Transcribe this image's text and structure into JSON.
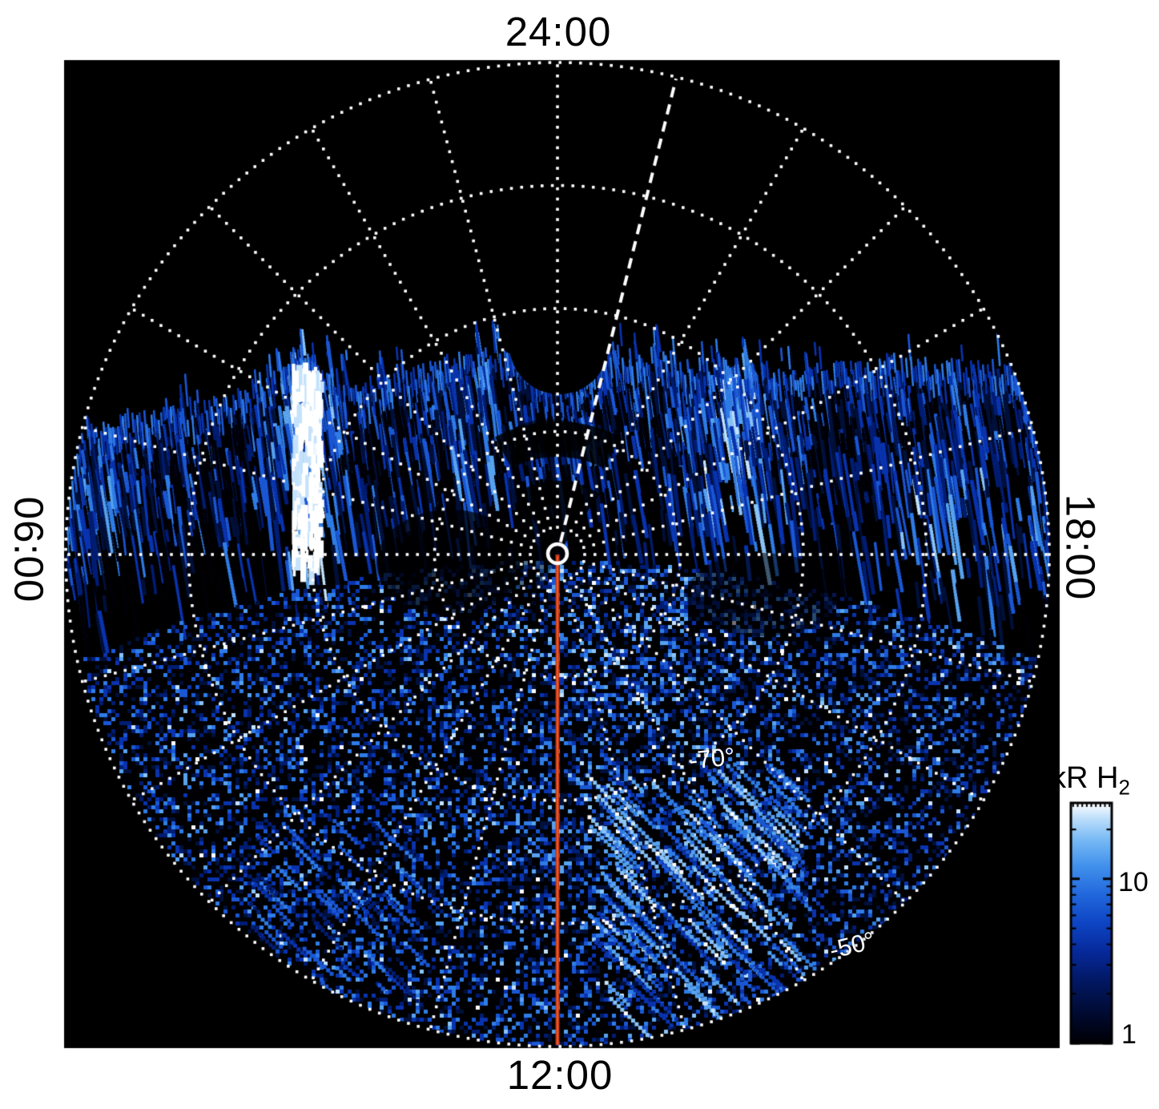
{
  "plot_labels": {
    "top": "24:00",
    "bottom": "12:00",
    "left": "06:00",
    "right": "18:00"
  },
  "latitude_labels": {
    "minus70": "-70°",
    "minus50": "-50°"
  },
  "colorbar_labels": {
    "title_main": "kR H",
    "title_sub": "2",
    "tick_10": "10",
    "tick_1": "1"
  },
  "colors": {
    "background": "#ffffff",
    "plot_background": "#000000",
    "grid": "#ffffff",
    "red_meridian": "#c63310",
    "red_meridian_core": "#e8632a",
    "text": "#000000",
    "lat_label_text": "#ffffff",
    "palette": [
      "#000006",
      "#00103a",
      "#001d74",
      "#0933ae",
      "#1a57d4",
      "#2f7ce6",
      "#57a2ef",
      "#8ac3f6",
      "#c4e2fc",
      "#ffffff"
    ]
  },
  "chart_data": {
    "type": "heatmap",
    "projection": "polar-south-pole",
    "title": "",
    "angular_axis": {
      "label_type": "local time",
      "labels": [
        {
          "text": "24:00",
          "position": "top"
        },
        {
          "text": "12:00",
          "position": "bottom"
        },
        {
          "text": "06:00",
          "position": "left"
        },
        {
          "text": "18:00",
          "position": "right"
        }
      ],
      "spoke_interval_deg": 15,
      "grid_style": "dotted-white"
    },
    "radial_axis": {
      "label_type": "latitude",
      "circles_deg": [
        -80,
        -70,
        -60,
        -50
      ],
      "labeled_circles": [
        {
          "text": "-70°",
          "deg": -70
        },
        {
          "text": "-50°",
          "deg": -50
        }
      ],
      "pole_deg": -90,
      "outer_edge_deg": -50
    },
    "colorbar": {
      "title": "kR H2",
      "scale": "log",
      "min": 1,
      "max": 29,
      "major_ticks": [
        10,
        1
      ],
      "minor_ticks": [
        2,
        3,
        4,
        5,
        6,
        7,
        8,
        9,
        20
      ],
      "colormap": "black-blue-white"
    },
    "overlays": [
      {
        "name": "noon-meridian-line",
        "style": "solid",
        "color": "#c63310",
        "local_time": "12:00",
        "from": "pole",
        "to": "-50° edge"
      },
      {
        "name": "dashed-meridian-line",
        "style": "dashed",
        "color": "#ffffff",
        "local_time": "~23:00 (14° from midnight)",
        "from": "pole",
        "to": "-50° edge"
      },
      {
        "name": "pole-ring-marker",
        "style": "circle-outline",
        "color": "#ffffff",
        "position": "south pole (plot center)"
      }
    ],
    "data_regions": [
      {
        "name": "no-data-nightside",
        "description": "Solid black (no emission) over the nightside sector 18:00–06:00 through 24:00, equatorward of the irregular emission boundary."
      },
      {
        "name": "main-emission-band",
        "description": "Bright streaked H2 emission band along the emission boundary at all local times; ~-53° near 06:00/18:00 rising to ~-75° near 24:00; intensities ~5–29 kR with white (saturated) patches."
      },
      {
        "name": "bright-column-dawn",
        "description": "Brightest white vertical column near 04:30–05:00 LT around -65° to -75° latitude, >29 kR."
      },
      {
        "name": "bright-patches-premidnight",
        "description": "White patches near 22:00–23:00 LT at -72° to -80°."
      },
      {
        "name": "dusk-bright-band",
        "description": "Enhanced light-blue/white band near 18:00–20:00 LT around -52° to -58°."
      },
      {
        "name": "dayside-speckle",
        "description": "Granular 1–10 kR emission filling the dayside half (06:00–18:00 through 12:00) out to the -50° edge, with scattered white speckles and diagonal streak artifacts near 13:00–14:00 LT."
      },
      {
        "name": "post-noon-bright-cluster",
        "description": "Enhanced white speckle cluster near 13:00–14:00 LT, -75° to -82°."
      },
      {
        "name": "dark-patches",
        "description": "Darker voids just equatorward of the pole near 11:00 and 16:00 LT, and dark arcs ringing the pole on the midnight side."
      }
    ]
  }
}
